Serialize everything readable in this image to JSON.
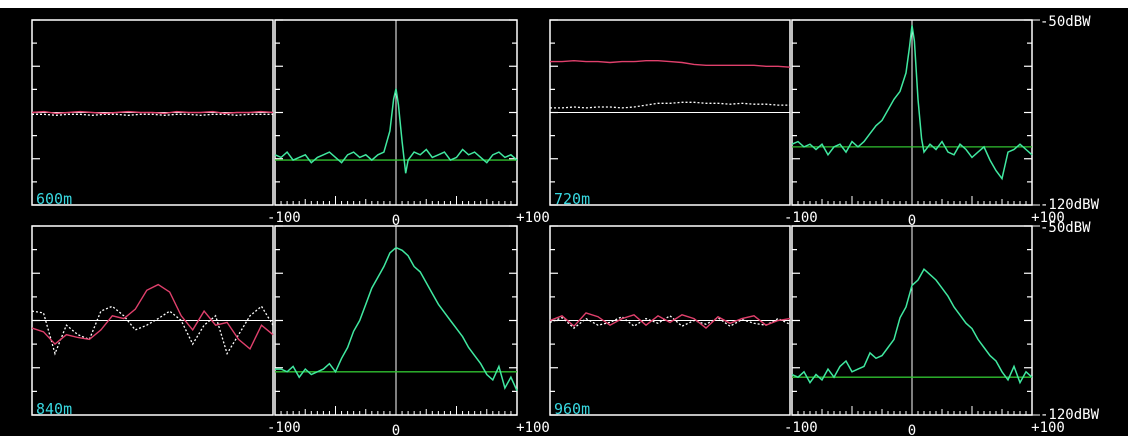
{
  "colors": {
    "background": "#000000",
    "frame": "#ffffff",
    "label_cyan": "#38d8e0",
    "spectrum_green": "#40e8a0",
    "baseline_green": "#30c030",
    "red_trace": "#e0406c",
    "white_trace": "#ffffff"
  },
  "db_scale": [
    {
      "top_label": "-50dBW",
      "bottom_label": "-120dBW"
    },
    {
      "top_label": "-50dBW",
      "bottom_label": "-120dBW"
    }
  ],
  "freq_axis": {
    "min_label": "-100",
    "mid_label": "0",
    "max_label": "+100"
  },
  "chart_data": [
    {
      "type": "line",
      "label": "600m",
      "time_panel": {
        "red": [
          0.0,
          0.01,
          -0.01,
          0.0,
          0.01,
          0.0,
          -0.01,
          0.0,
          0.01,
          0.0,
          0.0,
          -0.01,
          0.01,
          0.0,
          0.0,
          0.01,
          -0.01,
          0.0,
          0.0,
          0.01,
          0.0
        ],
        "white": [
          -0.02,
          -0.02,
          -0.03,
          -0.02,
          -0.02,
          -0.03,
          -0.02,
          -0.02,
          -0.03,
          -0.02,
          -0.02,
          -0.03,
          -0.02,
          -0.02,
          -0.03,
          -0.02,
          -0.02,
          -0.03,
          -0.02,
          -0.02,
          -0.02
        ]
      },
      "spectrum": {
        "x": [
          -100,
          -95,
          -90,
          -85,
          -80,
          -75,
          -70,
          -65,
          -60,
          -55,
          -50,
          -45,
          -40,
          -35,
          -30,
          -25,
          -20,
          -15,
          -10,
          -5,
          -2,
          0,
          2,
          5,
          8,
          10,
          15,
          20,
          25,
          30,
          35,
          40,
          45,
          50,
          55,
          60,
          65,
          70,
          75,
          80,
          85,
          90,
          95,
          100
        ],
        "y": [
          -101,
          -102,
          -100,
          -103,
          -102,
          -101,
          -104,
          -102,
          -101,
          -100,
          -102,
          -104,
          -101,
          -100,
          -102,
          -101,
          -103,
          -101,
          -100,
          -92,
          -80,
          -76,
          -82,
          -96,
          -108,
          -103,
          -100,
          -101,
          -99,
          -102,
          -101,
          -100,
          -103,
          -102,
          -99,
          -101,
          -100,
          -102,
          -104,
          -101,
          -100,
          -102,
          -101,
          -103
        ],
        "noise_floor": -103
      },
      "ylim": [
        -120,
        -50
      ]
    },
    {
      "type": "line",
      "label": "720m",
      "time_panel": {
        "red": [
          0.55,
          0.55,
          0.56,
          0.55,
          0.55,
          0.54,
          0.55,
          0.55,
          0.56,
          0.56,
          0.55,
          0.54,
          0.52,
          0.51,
          0.51,
          0.51,
          0.51,
          0.51,
          0.5,
          0.5,
          0.49
        ],
        "white": [
          0.05,
          0.05,
          0.06,
          0.05,
          0.06,
          0.06,
          0.05,
          0.06,
          0.08,
          0.1,
          0.1,
          0.11,
          0.11,
          0.1,
          0.1,
          0.09,
          0.1,
          0.09,
          0.09,
          0.08,
          0.08
        ]
      },
      "spectrum": {
        "x": [
          -100,
          -95,
          -90,
          -85,
          -80,
          -75,
          -70,
          -65,
          -60,
          -55,
          -50,
          -45,
          -40,
          -35,
          -30,
          -25,
          -20,
          -15,
          -10,
          -5,
          -2,
          0,
          2,
          5,
          8,
          10,
          15,
          20,
          25,
          30,
          35,
          40,
          45,
          50,
          55,
          60,
          65,
          70,
          75,
          80,
          85,
          90,
          95,
          100
        ],
        "y": [
          -97,
          -96,
          -98,
          -97,
          -99,
          -97,
          -101,
          -98,
          -97,
          -100,
          -96,
          -98,
          -96,
          -93,
          -90,
          -88,
          -84,
          -80,
          -77,
          -70,
          -60,
          -52,
          -58,
          -80,
          -95,
          -100,
          -97,
          -99,
          -96,
          -100,
          -101,
          -97,
          -99,
          -102,
          -100,
          -98,
          -103,
          -107,
          -110,
          -100,
          -99,
          -97,
          -99,
          -101
        ],
        "noise_floor": -98
      },
      "ylim": [
        -120,
        -50
      ]
    },
    {
      "type": "line",
      "label": "840m",
      "time_panel": {
        "red": [
          -0.08,
          -0.12,
          -0.25,
          -0.15,
          -0.18,
          -0.2,
          -0.1,
          0.05,
          0.02,
          0.12,
          0.32,
          0.38,
          0.3,
          0.05,
          -0.1,
          0.1,
          -0.05,
          -0.02,
          -0.2,
          -0.3,
          -0.05,
          -0.15
        ],
        "white": [
          0.1,
          0.08,
          -0.35,
          -0.05,
          -0.15,
          -0.2,
          0.1,
          0.15,
          0.05,
          -0.1,
          -0.05,
          0.02,
          0.1,
          0.0,
          -0.25,
          -0.05,
          0.05,
          -0.35,
          -0.15,
          0.05,
          0.15,
          -0.05
        ]
      },
      "spectrum": {
        "x": [
          -100,
          -95,
          -90,
          -85,
          -80,
          -75,
          -70,
          -65,
          -60,
          -55,
          -50,
          -45,
          -40,
          -35,
          -30,
          -25,
          -20,
          -15,
          -10,
          -5,
          0,
          5,
          10,
          15,
          20,
          25,
          30,
          35,
          40,
          45,
          50,
          55,
          60,
          65,
          70,
          75,
          80,
          85,
          90,
          95,
          100
        ],
        "y": [
          -103,
          -103,
          -104,
          -102,
          -106,
          -103,
          -105,
          -104,
          -103,
          -101,
          -104,
          -99,
          -95,
          -89,
          -85,
          -79,
          -73,
          -69,
          -65,
          -60,
          -58,
          -59,
          -61,
          -65,
          -67,
          -71,
          -75,
          -79,
          -82,
          -85,
          -88,
          -91,
          -95,
          -98,
          -101,
          -105,
          -107,
          -102,
          -110,
          -106,
          -111
        ],
        "noise_floor": -104
      },
      "ylim": [
        -120,
        -50
      ]
    },
    {
      "type": "line",
      "label": "960m",
      "time_panel": {
        "red": [
          0.0,
          0.05,
          -0.06,
          0.08,
          0.04,
          -0.05,
          0.02,
          0.06,
          -0.05,
          0.05,
          -0.02,
          0.06,
          0.02,
          -0.08,
          0.04,
          -0.03,
          0.02,
          0.05,
          -0.05,
          0.0,
          0.02
        ],
        "white": [
          -0.02,
          0.03,
          -0.08,
          0.02,
          -0.05,
          -0.02,
          0.04,
          -0.06,
          0.02,
          -0.03,
          0.05,
          -0.06,
          0.0,
          -0.04,
          0.03,
          -0.06,
          0.01,
          -0.03,
          -0.05,
          0.02,
          -0.04
        ]
      },
      "spectrum": {
        "x": [
          -100,
          -95,
          -90,
          -85,
          -80,
          -75,
          -70,
          -65,
          -60,
          -55,
          -50,
          -45,
          -40,
          -35,
          -30,
          -25,
          -20,
          -15,
          -10,
          -5,
          0,
          5,
          10,
          15,
          20,
          25,
          30,
          35,
          40,
          45,
          50,
          55,
          60,
          65,
          70,
          75,
          80,
          85,
          90,
          95,
          100
        ],
        "y": [
          -105,
          -106,
          -104,
          -108,
          -105,
          -107,
          -103,
          -106,
          -102,
          -100,
          -104,
          -103,
          -102,
          -97,
          -99,
          -98,
          -95,
          -92,
          -84,
          -80,
          -72,
          -70,
          -66,
          -68,
          -70,
          -73,
          -76,
          -80,
          -83,
          -86,
          -88,
          -92,
          -95,
          -98,
          -100,
          -104,
          -107,
          -102,
          -108,
          -104,
          -106
        ],
        "noise_floor": -106
      },
      "ylim": [
        -120,
        -50
      ]
    }
  ]
}
